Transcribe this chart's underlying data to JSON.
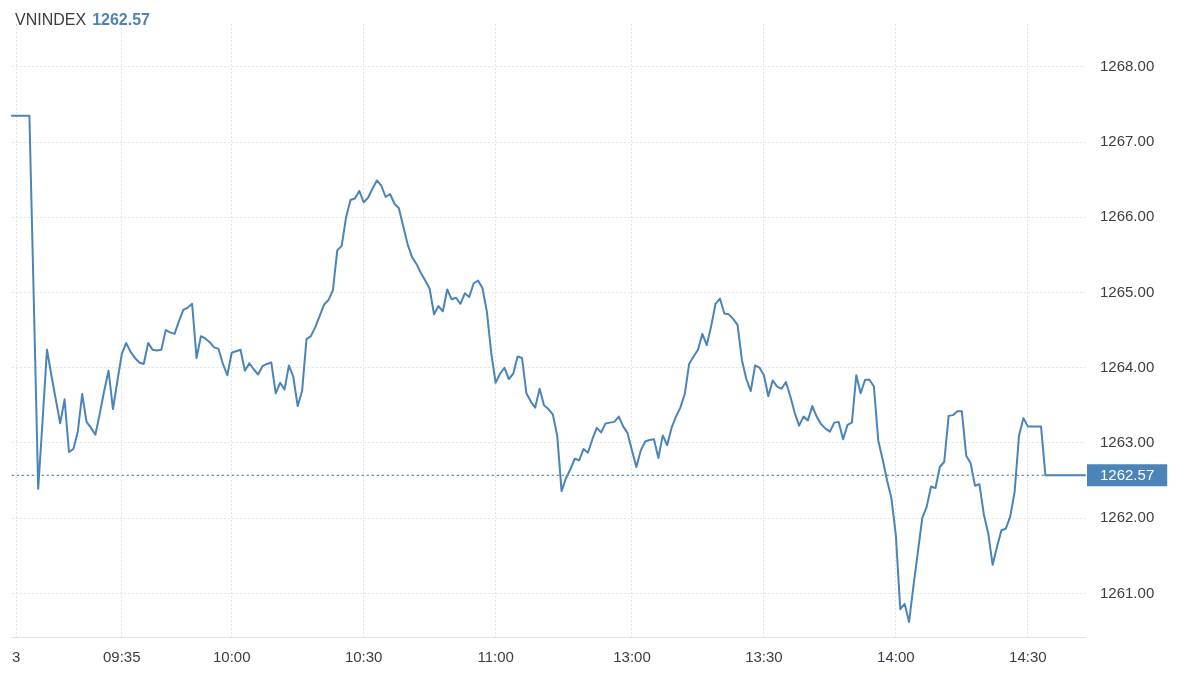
{
  "chart_data": {
    "type": "line",
    "title": "VNINDEX",
    "subtitle": "1262.57",
    "categories": [
      null,
      "3",
      null,
      null,
      null,
      null,
      null,
      null,
      null,
      null,
      null,
      null,
      null,
      null,
      null,
      null,
      null,
      null,
      null,
      null,
      null,
      null,
      null,
      null,
      null,
      "09:35",
      null,
      null,
      null,
      null,
      null,
      null,
      null,
      null,
      null,
      null,
      null,
      null,
      null,
      null,
      null,
      null,
      null,
      null,
      null,
      null,
      null,
      null,
      null,
      null,
      "10:00",
      null,
      null,
      null,
      null,
      null,
      null,
      null,
      null,
      null,
      null,
      null,
      null,
      null,
      null,
      null,
      null,
      null,
      null,
      null,
      null,
      null,
      null,
      null,
      null,
      null,
      null,
      null,
      null,
      null,
      "10:30",
      null,
      null,
      null,
      null,
      null,
      null,
      null,
      null,
      null,
      null,
      null,
      null,
      null,
      null,
      null,
      null,
      null,
      null,
      null,
      null,
      null,
      null,
      null,
      null,
      null,
      null,
      null,
      null,
      null,
      "11:00",
      null,
      null,
      null,
      null,
      null,
      null,
      null,
      null,
      null,
      null,
      null,
      null,
      null,
      null,
      null,
      null,
      null,
      null,
      null,
      null,
      null,
      null,
      null,
      null,
      null,
      null,
      null,
      null,
      null,
      null,
      "13:00",
      null,
      null,
      null,
      null,
      null,
      null,
      null,
      null,
      null,
      null,
      null,
      null,
      null,
      null,
      null,
      null,
      null,
      null,
      null,
      null,
      null,
      null,
      null,
      null,
      null,
      null,
      null,
      null,
      null,
      "13:30",
      null,
      null,
      null,
      null,
      null,
      null,
      null,
      null,
      null,
      null,
      null,
      null,
      null,
      null,
      null,
      null,
      null,
      null,
      null,
      null,
      null,
      null,
      null,
      null,
      null,
      null,
      null,
      null,
      null,
      "14:00",
      null,
      null,
      null,
      null,
      null,
      null,
      null,
      null,
      null,
      null,
      null,
      null,
      null,
      null,
      null,
      null,
      null,
      null,
      null,
      null,
      null,
      null,
      null,
      null,
      null,
      null,
      null,
      null,
      null,
      "14:30",
      null,
      null,
      null,
      null,
      null,
      null,
      null,
      null,
      null,
      null,
      null,
      null,
      null
    ],
    "color": "#4a84b8",
    "values": [
      1267.35,
      1267.35,
      1267.35,
      1267.35,
      1267.35,
      1264.9,
      1262.39,
      1263.3,
      1264.24,
      1263.9,
      1263.58,
      1263.26,
      1263.58,
      1262.88,
      1262.92,
      1263.15,
      1263.65,
      1263.28,
      1263.2,
      1263.11,
      1263.39,
      1263.69,
      1263.96,
      1263.45,
      1263.82,
      1264.18,
      1264.33,
      1264.21,
      1264.13,
      1264.07,
      1264.05,
      1264.33,
      1264.24,
      1264.23,
      1264.24,
      1264.5,
      1264.47,
      1264.45,
      1264.62,
      1264.77,
      1264.8,
      1264.85,
      1264.13,
      1264.42,
      1264.39,
      1264.34,
      1264.27,
      1264.25,
      1264.05,
      1263.9,
      1264.2,
      1264.22,
      1264.24,
      1263.96,
      1264.06,
      1263.98,
      1263.91,
      1264.02,
      1264.05,
      1264.07,
      1263.66,
      1263.8,
      1263.71,
      1264.03,
      1263.88,
      1263.49,
      1263.69,
      1264.38,
      1264.42,
      1264.54,
      1264.69,
      1264.84,
      1264.9,
      1265.03,
      1265.56,
      1265.62,
      1266,
      1266.23,
      1266.25,
      1266.35,
      1266.2,
      1266.26,
      1266.38,
      1266.49,
      1266.42,
      1266.27,
      1266.31,
      1266.18,
      1266.12,
      1265.88,
      1265.64,
      1265.47,
      1265.38,
      1265.26,
      1265.16,
      1265.05,
      1264.71,
      1264.82,
      1264.75,
      1265.04,
      1264.91,
      1264.93,
      1264.85,
      1264.99,
      1264.94,
      1265.12,
      1265.16,
      1265.06,
      1264.75,
      1264.2,
      1263.8,
      1263.92,
      1264,
      1263.85,
      1263.92,
      1264.15,
      1264.13,
      1263.66,
      1263.55,
      1263.47,
      1263.72,
      1263.5,
      1263.45,
      1263.38,
      1263.1,
      1262.36,
      1262.53,
      1262.65,
      1262.79,
      1262.77,
      1262.92,
      1262.87,
      1263.05,
      1263.2,
      1263.14,
      1263.26,
      1263.27,
      1263.28,
      1263.35,
      1263.22,
      1263.13,
      1262.9,
      1262.68,
      1262.9,
      1263.02,
      1263.04,
      1263.05,
      1262.8,
      1263.1,
      1262.97,
      1263.2,
      1263.35,
      1263.47,
      1263.65,
      1264.05,
      1264.15,
      1264.24,
      1264.45,
      1264.3,
      1264.55,
      1264.85,
      1264.92,
      1264.72,
      1264.71,
      1264.65,
      1264.57,
      1264.1,
      1263.85,
      1263.69,
      1264.03,
      1264,
      1263.9,
      1263.62,
      1263.83,
      1263.75,
      1263.72,
      1263.81,
      1263.62,
      1263.4,
      1263.23,
      1263.35,
      1263.3,
      1263.49,
      1263.35,
      1263.25,
      1263.19,
      1263.15,
      1263.27,
      1263.28,
      1263.05,
      1263.24,
      1263.27,
      1263.9,
      1263.66,
      1263.84,
      1263.84,
      1263.75,
      1263.03,
      1262.78,
      1262.5,
      1262.26,
      1261.77,
      1260.79,
      1260.86,
      1260.62,
      1261.1,
      1261.55,
      1262,
      1262.15,
      1262.42,
      1262.4,
      1262.68,
      1262.75,
      1263.36,
      1263.37,
      1263.42,
      1263.42,
      1262.83,
      1262.73,
      1262.43,
      1262.45,
      1262.05,
      1261.8,
      1261.38,
      1261.62,
      1261.84,
      1261.86,
      1262.02,
      1262.35,
      1263.1,
      1263.33,
      1263.22,
      1263.22,
      1263.22,
      1263.22,
      1262.57,
      1262.57,
      1262.57,
      1262.57,
      1262.57,
      1262.57,
      1262.57,
      1262.57,
      1262.57,
      1262.57
    ],
    "ylim": [
      1260.42,
      1268.57
    ],
    "yticks": [
      {
        "value": 1261,
        "label": "1261.00"
      },
      {
        "value": 1262,
        "label": "1262.00"
      },
      {
        "value": 1263,
        "label": "1263.00"
      },
      {
        "value": 1264,
        "label": "1264.00"
      },
      {
        "value": 1265,
        "label": "1265.00"
      },
      {
        "value": 1266,
        "label": "1266.00"
      },
      {
        "value": 1267,
        "label": "1267.00"
      },
      {
        "value": 1268,
        "label": "1268.00"
      }
    ],
    "ref_lines": [
      {
        "axis": "y",
        "value": 1262.57,
        "label": "1262.57",
        "color": "#4a84b8",
        "line_style": "dotted"
      }
    ],
    "grid": true
  }
}
